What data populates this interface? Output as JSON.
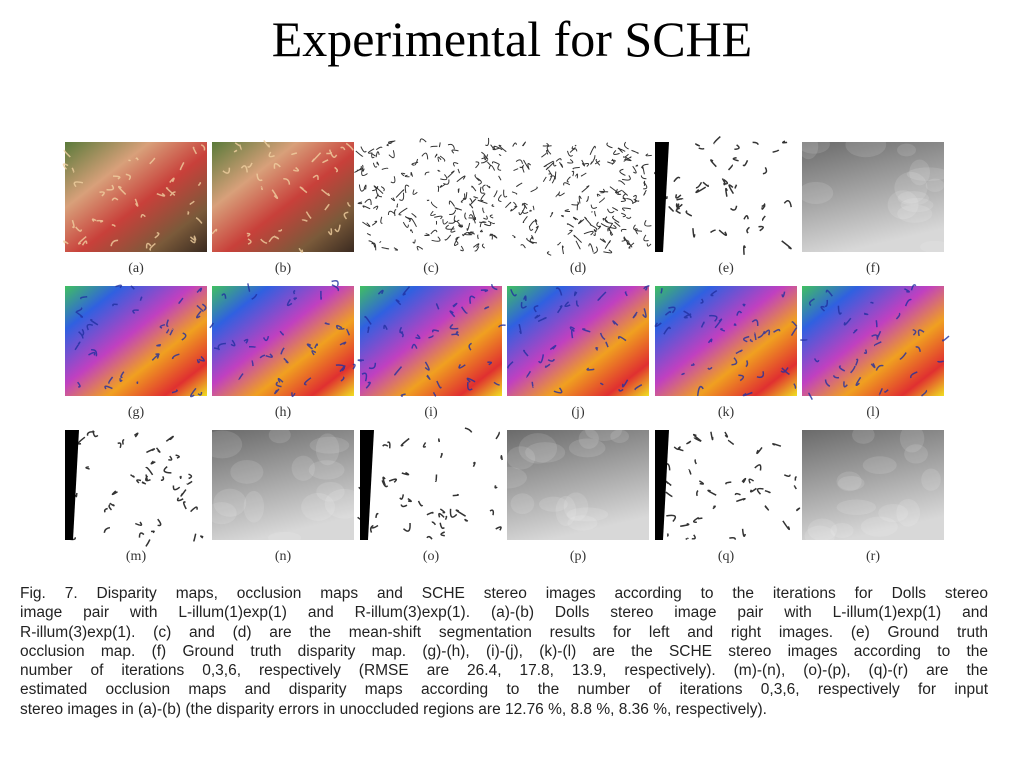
{
  "title": "Experimental for SCHE",
  "panels": [
    "(a)",
    "(b)",
    "(c)",
    "(d)",
    "(e)",
    "(f)",
    "(g)",
    "(h)",
    "(i)",
    "(j)",
    "(k)",
    "(l)",
    "(m)",
    "(n)",
    "(o)",
    "(p)",
    "(q)",
    "(r)"
  ],
  "caption": {
    "lines": [
      "Fig. 7.  Disparity maps, occlusion maps and SCHE stereo images according to the iterations for Dolls stereo",
      "image pair with L-illum(1)exp(1) and R-illum(3)exp(1). (a)-(b) Dolls stereo image pair with L-illum(1)exp(1) and",
      "R-illum(3)exp(1). (c) and (d) are the mean-shift segmentation results for left and right images. (e) Ground truth",
      "occlusion map. (f) Ground truth disparity map. (g)-(h), (i)-(j), (k)-(l) are the SCHE stereo images according to the",
      "number of iterations 0,3,6, respectively (RMSE are 26.4, 17.8, 13.9, respectively). (m)-(n), (o)-(p), (q)-(r) are the",
      "estimated occlusion maps and disparity maps according to the number of iterations 0,3,6, respectively for input",
      "stereo images in (a)-(b) (the disparity errors in unoccluded regions are 12.76 %, 8.8 %, 8.36 %, respectively)."
    ]
  }
}
